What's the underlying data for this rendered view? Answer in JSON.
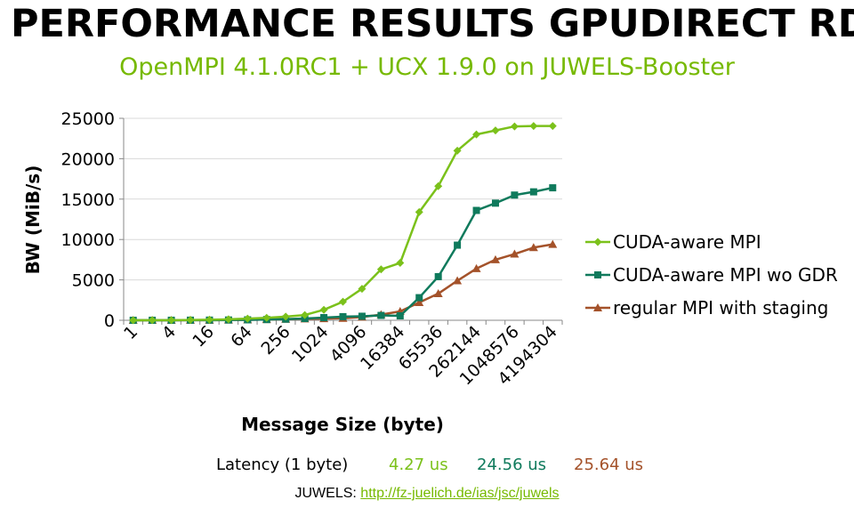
{
  "title": "PERFORMANCE RESULTS GPUDIRECT RDMA",
  "subtitle": "OpenMPI 4.1.0RC1 + UCX 1.9.0 on JUWELS-Booster",
  "colors": {
    "green": "#7bc11b",
    "teal": "#0f7a5c",
    "brown": "#a4522a",
    "grid": "#d9d9d9"
  },
  "chart_data": {
    "type": "line",
    "xlabel": "Message Size (byte)",
    "ylabel": "BW (MiB/s)",
    "ylim": [
      0,
      25000
    ],
    "yticks": [
      0,
      5000,
      10000,
      15000,
      20000,
      25000
    ],
    "grid": true,
    "legend_position": "right",
    "categories": [
      "1",
      "2",
      "4",
      "8",
      "16",
      "32",
      "64",
      "128",
      "256",
      "512",
      "1024",
      "2048",
      "4096",
      "8192",
      "16384",
      "32768",
      "65536",
      "131072",
      "262144",
      "524288",
      "1048576",
      "2097152",
      "4194304"
    ],
    "tick_labels": [
      "1",
      "4",
      "16",
      "64",
      "256",
      "1024",
      "4096",
      "16384",
      "65536",
      "262144",
      "1048576",
      "4194304"
    ],
    "series": [
      {
        "name": "CUDA-aware MPI",
        "marker": "diamond",
        "color": "#7bc11b",
        "values": [
          5,
          10,
          20,
          40,
          70,
          120,
          200,
          300,
          450,
          650,
          1300,
          2300,
          3900,
          6300,
          7100,
          13400,
          16600,
          21000,
          23000,
          23500,
          24000,
          24050,
          24050
        ]
      },
      {
        "name": "CUDA-aware MPI wo GDR",
        "marker": "square",
        "color": "#0f7a5c",
        "values": [
          2,
          3,
          6,
          12,
          20,
          35,
          55,
          90,
          140,
          220,
          330,
          450,
          500,
          600,
          550,
          2800,
          5400,
          9300,
          13600,
          14500,
          15500,
          15900,
          16400
        ]
      },
      {
        "name": "regular MPI with staging",
        "marker": "triangle",
        "color": "#a4522a",
        "values": [
          2,
          3,
          6,
          12,
          20,
          35,
          55,
          90,
          140,
          180,
          200,
          250,
          400,
          700,
          1100,
          2200,
          3300,
          4900,
          6400,
          7500,
          8200,
          9000,
          9400
        ]
      }
    ]
  },
  "latency": {
    "label": "Latency (1 byte)",
    "values": [
      {
        "text": "4.27 us",
        "color": "#7bc11b"
      },
      {
        "text": "24.56 us",
        "color": "#0f7a5c"
      },
      {
        "text": "25.64 us",
        "color": "#a4522a"
      }
    ]
  },
  "footer": {
    "prefix": "JUWELS: ",
    "link_text": "http://fz-juelich.de/ias/jsc/juwels"
  }
}
